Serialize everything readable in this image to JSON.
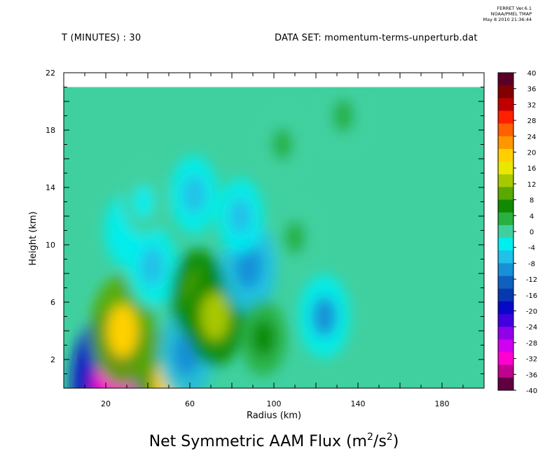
{
  "header": {
    "time_label": "T (MINUTES) : 30",
    "dataset_label": "DATA SET: momentum-terms-unperturb.dat",
    "stamp_line1": "FERRET Ver.6.1",
    "stamp_line2": "NOAA/PMEL TMAP",
    "stamp_line3": "May  8 2010 21:36:44"
  },
  "chart_data": {
    "type": "heatmap",
    "title": "Net Symmetric AAM Flux (m²/s²)",
    "title_main": "Net Symmetric AAM Flux (m",
    "title_unit_num_sup": "2",
    "title_mid": "/s",
    "title_unit_den_sup": "2",
    "title_end": ")",
    "xlabel": "Radius (km)",
    "ylabel": "Height (km)",
    "xlim": [
      0,
      200
    ],
    "ylim": [
      0,
      22
    ],
    "data_top": 21,
    "xticks": [
      20,
      60,
      100,
      140,
      180
    ],
    "xtick_labels": [
      "20",
      "60",
      "100",
      "140",
      "180"
    ],
    "yticks": [
      2,
      6,
      10,
      14,
      18,
      22
    ],
    "ytick_labels": [
      "2",
      "6",
      "10",
      "14",
      "18",
      "22"
    ],
    "colorbar": {
      "min": -40,
      "max": 40,
      "step": 4,
      "labels": [
        "40",
        "36",
        "32",
        "28",
        "24",
        "20",
        "16",
        "12",
        "8",
        "4",
        "0",
        "-4",
        "-8",
        "-12",
        "-16",
        "-20",
        "-24",
        "-28",
        "-32",
        "-36",
        "-40"
      ],
      "colors": [
        "#5a0028",
        "#820000",
        "#c00000",
        "#ff2000",
        "#ff6000",
        "#ff9800",
        "#ffd000",
        "#e8e800",
        "#a8c800",
        "#5aa800",
        "#108a00",
        "#28b040",
        "#40d0a0",
        "#00eeee",
        "#20c0e8",
        "#1890d8",
        "#1060c0",
        "#0838b0",
        "#0808c8",
        "#4000e0",
        "#9000e8",
        "#d000f0",
        "#ff00d0",
        "#c00090",
        "#600040"
      ]
    },
    "features": [
      {
        "x": 24,
        "y": 0.2,
        "value": -33
      },
      {
        "x": 28,
        "y": 4,
        "value": 18
      },
      {
        "x": 30,
        "y": 11,
        "value": -4
      },
      {
        "x": 42,
        "y": 8.5,
        "value": -7
      },
      {
        "x": 38,
        "y": 13,
        "value": -2
      },
      {
        "x": 50,
        "y": 0.4,
        "value": 18
      },
      {
        "x": 58,
        "y": 2.3,
        "value": -10
      },
      {
        "x": 64,
        "y": 6.5,
        "value": 11
      },
      {
        "x": 72,
        "y": 5,
        "value": 14
      },
      {
        "x": 62,
        "y": 13.5,
        "value": -6
      },
      {
        "x": 88,
        "y": 8.5,
        "value": -11
      },
      {
        "x": 84,
        "y": 12,
        "value": -5
      },
      {
        "x": 95,
        "y": 3.5,
        "value": 5
      },
      {
        "x": 110,
        "y": 10.5,
        "value": 3
      },
      {
        "x": 104,
        "y": 17,
        "value": 2
      },
      {
        "x": 124,
        "y": 5,
        "value": -8
      },
      {
        "x": 133,
        "y": 19,
        "value": 3
      }
    ]
  }
}
